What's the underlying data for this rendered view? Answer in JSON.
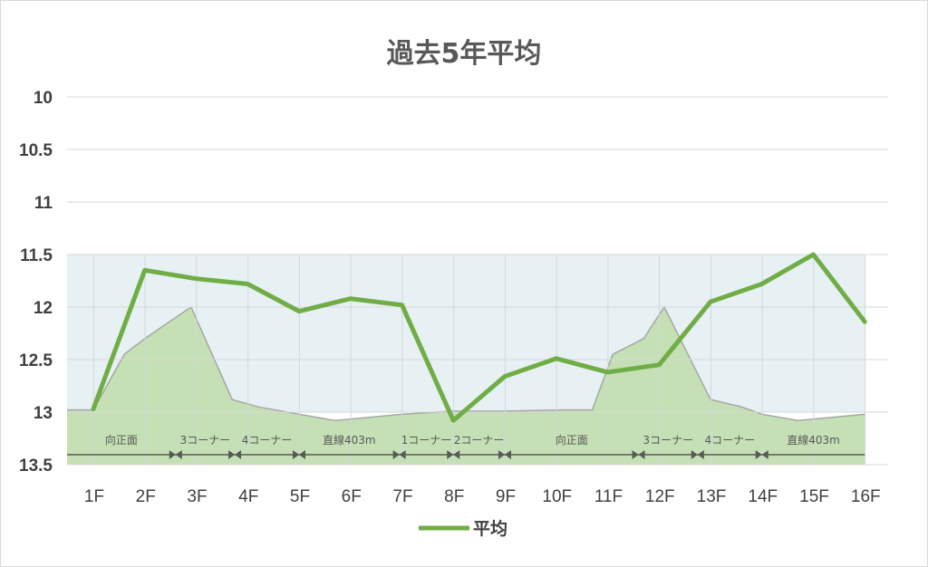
{
  "chart_data": {
    "type": "line",
    "title": "過去5年平均",
    "categories": [
      "1F",
      "2F",
      "3F",
      "4F",
      "5F",
      "6F",
      "7F",
      "8F",
      "9F",
      "10F",
      "11F",
      "12F",
      "13F",
      "14F",
      "15F",
      "16F"
    ],
    "y_ticks": [
      "10",
      "10.5",
      "11",
      "11.5",
      "12",
      "12.5",
      "13",
      "13.5"
    ],
    "ylim": [
      10,
      13.5
    ],
    "y_reversed": true,
    "grid": true,
    "legend": "bottom",
    "series": [
      {
        "name": "平均",
        "color": "#70ad47",
        "values": [
          12.97,
          11.65,
          11.73,
          11.78,
          12.04,
          11.92,
          11.98,
          13.08,
          12.66,
          12.49,
          12.62,
          12.55,
          11.95,
          11.78,
          11.5,
          12.14
        ]
      }
    ],
    "background_course": {
      "profile": [
        12.98,
        12.45,
        12.3,
        12.0,
        12.88,
        12.95,
        13.02,
        13.08,
        13.02,
        12.99,
        12.99,
        12.98,
        12.98,
        12.45,
        12.3,
        12.0,
        12.88,
        12.95,
        13.02,
        13.08,
        13.02
      ],
      "profile_x": [
        1,
        1.6,
        2,
        2.9,
        3.7,
        4.2,
        5,
        5.7,
        7,
        8,
        9,
        10.1,
        10.7,
        11.1,
        11.7,
        12.1,
        13.0,
        13.6,
        14,
        14.7,
        16
      ],
      "segments": [
        {
          "label": "向正面",
          "from": 1,
          "to": 2.6
        },
        {
          "label": "3コーナー",
          "from": 2.6,
          "to": 3.75
        },
        {
          "label": "4コーナー",
          "from": 3.75,
          "to": 5
        },
        {
          "label": "直線403m",
          "from": 5,
          "to": 6.95
        },
        {
          "label": "1コーナー",
          "from": 6.95,
          "to": 8
        },
        {
          "label": "2コーナー",
          "from": 8,
          "to": 9
        },
        {
          "label": "向正面",
          "from": 9,
          "to": 11.6
        },
        {
          "label": "3コーナー",
          "from": 11.6,
          "to": 12.75
        },
        {
          "label": "4コーナー",
          "from": 12.75,
          "to": 14
        },
        {
          "label": "直線403m",
          "from": 14,
          "to": 16
        }
      ]
    }
  },
  "colors": {
    "line": "#70ad47",
    "fill": "#c5e0b4",
    "band": "#e7f0f3",
    "grid": "#d9d9d9",
    "text": "#404040"
  }
}
